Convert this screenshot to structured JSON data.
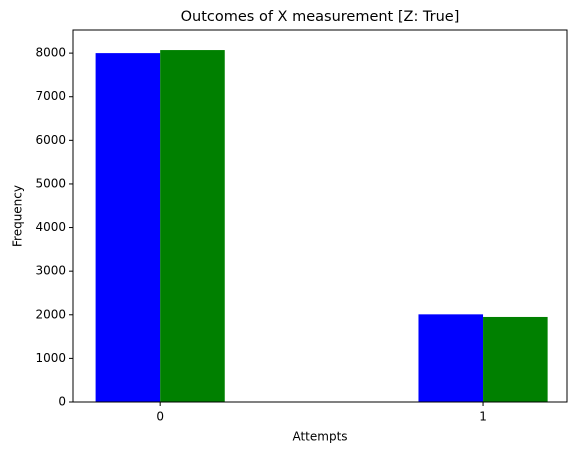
{
  "chart_data": {
    "type": "bar",
    "title": "Outcomes of X measurement [Z: True]",
    "x_label": "Attempts",
    "y_label": "Frequency",
    "x": [
      0,
      1
    ],
    "series": [
      {
        "color": "#0000ff",
        "values": [
          8000,
          2010
        ]
      },
      {
        "color": "#008000",
        "values": [
          8070,
          1950
        ]
      }
    ],
    "xlim": [
      -0.27,
      1.26
    ],
    "xticks": [
      0,
      1
    ],
    "ylim": [
      0,
      8530
    ],
    "yticks": [
      0,
      1000,
      2000,
      3000,
      4000,
      5000,
      6000,
      7000,
      8000
    ],
    "grid": false
  }
}
